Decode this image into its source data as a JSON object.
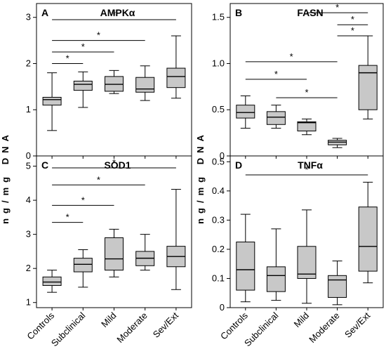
{
  "ylabel": "ng/mg DNA",
  "categories": [
    "Controls",
    "Subclinical",
    "Mild",
    "Moderate",
    "Sev/Ext"
  ],
  "box_fill": "#c8c8c8",
  "chart_data": [
    {
      "type": "box",
      "label": "A",
      "title": "AMPKα",
      "ylim": [
        0,
        3.3
      ],
      "yticks": [
        0,
        1,
        2,
        3
      ],
      "categories": [
        "Controls",
        "Subclinical",
        "Mild",
        "Moderate",
        "Sev/Ext"
      ],
      "boxes": [
        {
          "min": 0.55,
          "q1": 1.1,
          "median": 1.22,
          "q3": 1.27,
          "max": 1.8
        },
        {
          "min": 1.05,
          "q1": 1.42,
          "median": 1.55,
          "q3": 1.62,
          "max": 1.82
        },
        {
          "min": 1.35,
          "q1": 1.4,
          "median": 1.55,
          "q3": 1.72,
          "max": 1.85
        },
        {
          "min": 1.2,
          "q1": 1.38,
          "median": 1.45,
          "q3": 1.7,
          "max": 1.95
        },
        {
          "min": 1.25,
          "q1": 1.48,
          "median": 1.72,
          "q3": 1.9,
          "max": 2.6
        }
      ],
      "significance": [
        {
          "from": 0,
          "to": 1,
          "y": 2.0,
          "label": "*"
        },
        {
          "from": 0,
          "to": 2,
          "y": 2.25,
          "label": "*"
        },
        {
          "from": 0,
          "to": 3,
          "y": 2.5,
          "label": "*"
        },
        {
          "from": 0,
          "to": 4,
          "y": 2.95,
          "label": "*"
        }
      ]
    },
    {
      "type": "box",
      "label": "B",
      "title": "FASN",
      "ylim": [
        0,
        1.65
      ],
      "yticks": [
        0,
        0.5,
        1.0,
        1.5
      ],
      "ytick_labels": [
        "0",
        "0.5",
        "1.0",
        "1.5"
      ],
      "categories": [
        "Controls",
        "Subclinical",
        "Mild",
        "Moderate",
        "Sev/Ext"
      ],
      "boxes": [
        {
          "min": 0.3,
          "q1": 0.41,
          "median": 0.47,
          "q3": 0.55,
          "max": 0.65
        },
        {
          "min": 0.3,
          "q1": 0.34,
          "median": 0.42,
          "q3": 0.48,
          "max": 0.55
        },
        {
          "min": 0.23,
          "q1": 0.27,
          "median": 0.36,
          "q3": 0.37,
          "max": 0.4
        },
        {
          "min": 0.09,
          "q1": 0.12,
          "median": 0.15,
          "q3": 0.17,
          "max": 0.19
        },
        {
          "min": 0.4,
          "q1": 0.5,
          "median": 0.9,
          "q3": 0.98,
          "max": 1.3
        }
      ],
      "significance": [
        {
          "from": 0,
          "to": 3,
          "y": 1.02,
          "label": "*"
        },
        {
          "from": 0,
          "to": 2,
          "y": 0.83,
          "label": "*"
        },
        {
          "from": 1,
          "to": 3,
          "y": 0.63,
          "label": "*"
        },
        {
          "from": 2,
          "to": 4,
          "y": 1.55,
          "label": "*"
        },
        {
          "from": 3,
          "to": 4,
          "y": 1.42,
          "label": "*"
        },
        {
          "from": 3,
          "to": 4,
          "y": 1.3,
          "label": "*"
        }
      ]
    },
    {
      "type": "box",
      "label": "C",
      "title": "SOD1",
      "ylim": [
        0.85,
        5.3
      ],
      "yticks": [
        1,
        2,
        3,
        4,
        5
      ],
      "categories": [
        "Controls",
        "Subclinical",
        "Mild",
        "Moderate",
        "Sev/Ext"
      ],
      "boxes": [
        {
          "min": 1.3,
          "q1": 1.5,
          "median": 1.6,
          "q3": 1.75,
          "max": 1.95
        },
        {
          "min": 1.45,
          "q1": 1.9,
          "median": 2.12,
          "q3": 2.3,
          "max": 2.55
        },
        {
          "min": 1.75,
          "q1": 1.95,
          "median": 2.28,
          "q3": 2.9,
          "max": 3.15
        },
        {
          "min": 1.95,
          "q1": 2.08,
          "median": 2.3,
          "q3": 2.5,
          "max": 3.0
        },
        {
          "min": 1.38,
          "q1": 2.05,
          "median": 2.35,
          "q3": 2.65,
          "max": 4.32
        }
      ],
      "significance": [
        {
          "from": 0,
          "to": 1,
          "y": 3.35,
          "label": "*"
        },
        {
          "from": 0,
          "to": 2,
          "y": 3.85,
          "label": "*"
        },
        {
          "from": 0,
          "to": 3,
          "y": 4.45,
          "label": "*"
        },
        {
          "from": 0,
          "to": 4,
          "y": 4.95,
          "label": "*"
        }
      ]
    },
    {
      "type": "box",
      "label": "D",
      "title": "TNFα",
      "ylim": [
        0,
        0.52
      ],
      "yticks": [
        0,
        0.1,
        0.2,
        0.3,
        0.4,
        0.5
      ],
      "ytick_labels": [
        "0",
        "0.1",
        "0.2",
        "0.3",
        "0.4",
        "0.5"
      ],
      "categories": [
        "Controls",
        "Subclinical",
        "Mild",
        "Moderate",
        "Sev/Ext"
      ],
      "boxes": [
        {
          "min": 0.02,
          "q1": 0.06,
          "median": 0.13,
          "q3": 0.225,
          "max": 0.32
        },
        {
          "min": 0.025,
          "q1": 0.055,
          "median": 0.11,
          "q3": 0.14,
          "max": 0.27
        },
        {
          "min": 0.015,
          "q1": 0.1,
          "median": 0.115,
          "q3": 0.21,
          "max": 0.335
        },
        {
          "min": 0.01,
          "q1": 0.035,
          "median": 0.095,
          "q3": 0.11,
          "max": 0.16
        },
        {
          "min": 0.085,
          "q1": 0.125,
          "median": 0.21,
          "q3": 0.345,
          "max": 0.43
        }
      ],
      "significance": [
        {
          "from": 0,
          "to": 4,
          "y": 0.455,
          "label": "*"
        }
      ]
    }
  ]
}
